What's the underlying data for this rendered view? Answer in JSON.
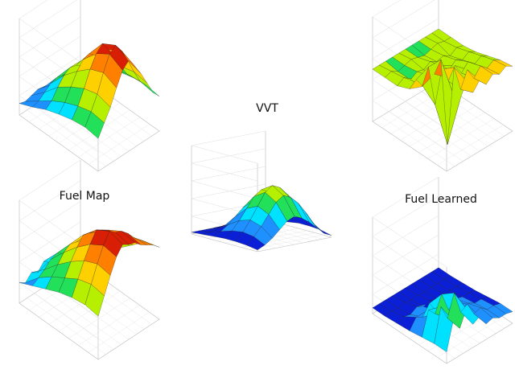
{
  "labels": {
    "vvt": "VVT",
    "fuel_map": "Fuel Map",
    "fuel_learned": "Fuel Learned"
  },
  "chart_data": [
    {
      "id": "top-left",
      "type": "surface3d",
      "colors": [
        "#0a1fd6",
        "#1e90ff",
        "#00e0ff",
        "#22e05a",
        "#b6f000",
        "#ffd000",
        "#ff8000",
        "#d81e05"
      ],
      "grid": true,
      "z": [
        [
          0.12,
          0.1,
          0.12,
          0.14,
          0.12,
          0.1,
          0.1,
          0.12,
          0.14,
          0.12,
          0.1
        ],
        [
          0.18,
          0.2,
          0.25,
          0.3,
          0.32,
          0.3,
          0.28,
          0.3,
          0.26,
          0.24,
          0.2
        ],
        [
          0.25,
          0.3,
          0.4,
          0.48,
          0.52,
          0.5,
          0.46,
          0.48,
          0.4,
          0.34,
          0.28
        ],
        [
          0.3,
          0.38,
          0.5,
          0.62,
          0.7,
          0.72,
          0.66,
          0.6,
          0.5,
          0.4,
          0.32
        ],
        [
          0.34,
          0.44,
          0.58,
          0.74,
          0.86,
          0.92,
          0.82,
          0.7,
          0.56,
          0.44,
          0.36
        ],
        [
          0.36,
          0.48,
          0.62,
          0.8,
          0.95,
          1.0,
          0.9,
          0.76,
          0.6,
          0.46,
          0.38
        ],
        [
          0.34,
          0.46,
          0.58,
          0.74,
          0.88,
          0.94,
          0.84,
          0.72,
          0.58,
          0.44,
          0.36
        ]
      ]
    },
    {
      "id": "fuel-map",
      "type": "surface3d",
      "colors": [
        "#0a1fd6",
        "#1e90ff",
        "#00e0ff",
        "#22e05a",
        "#b6f000",
        "#ffd000",
        "#ff8000",
        "#d81e05"
      ],
      "grid": true,
      "z": [
        [
          0.2,
          0.16,
          0.22,
          0.18,
          0.25,
          0.2,
          0.22,
          0.18,
          0.2,
          0.16,
          0.18
        ],
        [
          0.26,
          0.3,
          0.34,
          0.4,
          0.42,
          0.38,
          0.4,
          0.36,
          0.34,
          0.3,
          0.26
        ],
        [
          0.32,
          0.4,
          0.48,
          0.56,
          0.6,
          0.58,
          0.56,
          0.52,
          0.46,
          0.4,
          0.34
        ],
        [
          0.38,
          0.48,
          0.6,
          0.7,
          0.78,
          0.76,
          0.72,
          0.66,
          0.58,
          0.5,
          0.42
        ],
        [
          0.42,
          0.56,
          0.7,
          0.82,
          0.92,
          0.88,
          0.84,
          0.76,
          0.68,
          0.6,
          0.54
        ],
        [
          0.44,
          0.6,
          0.76,
          0.9,
          1.0,
          0.95,
          0.92,
          0.86,
          0.78,
          0.72,
          0.66
        ],
        [
          0.42,
          0.58,
          0.74,
          0.88,
          0.96,
          0.92,
          0.9,
          0.84,
          0.8,
          0.76,
          0.7
        ]
      ]
    },
    {
      "id": "vvt",
      "type": "surface3d",
      "colors": [
        "#0a1fd6",
        "#1e90ff",
        "#00e0ff",
        "#22e05a",
        "#b6f000",
        "#ffd000",
        "#ff8000",
        "#d81e05"
      ],
      "grid": true,
      "z": [
        [
          0.02,
          0.02,
          0.02,
          0.02,
          0.02,
          0.02,
          0.02,
          0.02,
          0.02,
          0.02,
          0.02
        ],
        [
          0.03,
          0.04,
          0.06,
          0.08,
          0.1,
          0.12,
          0.1,
          0.08,
          0.06,
          0.04,
          0.03
        ],
        [
          0.04,
          0.08,
          0.14,
          0.22,
          0.3,
          0.34,
          0.3,
          0.24,
          0.16,
          0.08,
          0.04
        ],
        [
          0.05,
          0.12,
          0.22,
          0.34,
          0.46,
          0.52,
          0.48,
          0.4,
          0.28,
          0.14,
          0.06
        ],
        [
          0.05,
          0.14,
          0.26,
          0.4,
          0.54,
          0.6,
          0.56,
          0.46,
          0.34,
          0.18,
          0.06
        ],
        [
          0.04,
          0.12,
          0.22,
          0.34,
          0.46,
          0.52,
          0.48,
          0.4,
          0.28,
          0.14,
          0.05
        ],
        [
          0.02,
          0.06,
          0.12,
          0.2,
          0.28,
          0.32,
          0.28,
          0.22,
          0.14,
          0.06,
          0.02
        ]
      ]
    },
    {
      "id": "top-right",
      "type": "surface3d",
      "colors": [
        "#0a1fd6",
        "#1e90ff",
        "#00e0ff",
        "#22e05a",
        "#b6f000",
        "#ffd000",
        "#ff8000",
        "#d81e05"
      ],
      "grid": true,
      "z": [
        [
          0.5,
          0.5,
          0.5,
          0.5,
          0.5,
          0.5,
          0.5,
          0.5,
          0.5,
          0.5,
          0.5
        ],
        [
          0.5,
          0.52,
          0.48,
          0.5,
          0.52,
          0.5,
          0.48,
          0.5,
          0.52,
          0.5,
          0.5
        ],
        [
          0.5,
          0.54,
          0.48,
          0.52,
          0.5,
          0.54,
          0.5,
          0.52,
          0.48,
          0.52,
          0.5
        ],
        [
          0.55,
          0.6,
          0.5,
          0.56,
          0.52,
          0.58,
          0.5,
          0.56,
          0.52,
          0.56,
          0.52
        ],
        [
          0.65,
          0.8,
          0.4,
          0.7,
          0.55,
          0.66,
          0.55,
          0.62,
          0.56,
          0.6,
          0.56
        ],
        [
          0.85,
          0.95,
          0.1,
          0.8,
          0.55,
          0.7,
          0.58,
          0.66,
          0.6,
          0.64,
          0.6
        ],
        [
          0.9,
          0.7,
          0.6,
          0.75,
          0.6,
          0.68,
          0.6,
          0.66,
          0.62,
          0.66,
          0.62
        ]
      ]
    },
    {
      "id": "fuel-learned",
      "type": "surface3d",
      "colors": [
        "#0a1fd6",
        "#1e90ff",
        "#00e0ff",
        "#22e05a",
        "#b6f000",
        "#ffd000",
        "#ff8000",
        "#d81e05"
      ],
      "grid": true,
      "z": [
        [
          0.06,
          0.06,
          0.06,
          0.06,
          0.06,
          0.06,
          0.06,
          0.06,
          0.06,
          0.06,
          0.06
        ],
        [
          0.06,
          0.07,
          0.06,
          0.08,
          0.06,
          0.07,
          0.06,
          0.07,
          0.06,
          0.07,
          0.06
        ],
        [
          0.07,
          0.1,
          0.08,
          0.12,
          0.08,
          0.1,
          0.08,
          0.09,
          0.08,
          0.08,
          0.07
        ],
        [
          0.08,
          0.18,
          0.14,
          0.24,
          0.12,
          0.16,
          0.1,
          0.12,
          0.1,
          0.1,
          0.08
        ],
        [
          0.1,
          0.34,
          0.26,
          0.42,
          0.22,
          0.26,
          0.14,
          0.16,
          0.12,
          0.12,
          0.1
        ],
        [
          0.12,
          0.46,
          0.3,
          0.52,
          0.28,
          0.32,
          0.18,
          0.2,
          0.14,
          0.14,
          0.12
        ],
        [
          0.12,
          0.4,
          0.28,
          0.44,
          0.24,
          0.28,
          0.16,
          0.18,
          0.14,
          0.14,
          0.12
        ]
      ]
    }
  ]
}
